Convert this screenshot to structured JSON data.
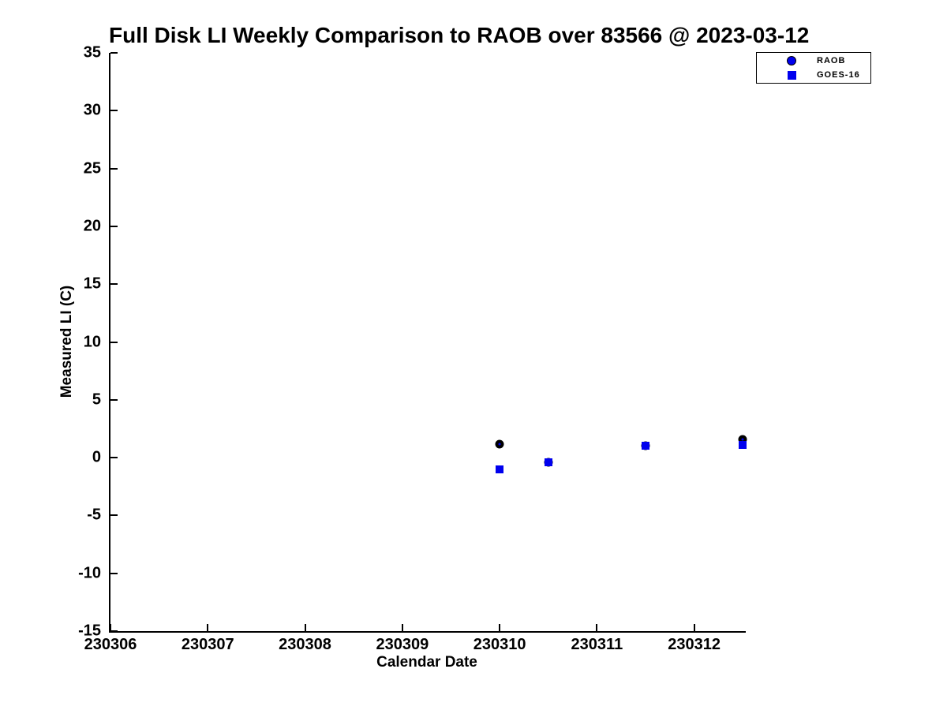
{
  "chart_data": {
    "type": "scatter",
    "title": "Full Disk LI Weekly Comparison to RAOB over 83566 @ 2023-03-12",
    "xlabel": "Calendar Date",
    "ylabel": "Measured LI (C)",
    "xlim": [
      230306,
      230312.53
    ],
    "ylim": [
      -15,
      35
    ],
    "xticks": [
      "230306",
      "230307",
      "230308",
      "230309",
      "230310",
      "230311",
      "230312"
    ],
    "yticks": [
      35,
      30,
      25,
      20,
      15,
      10,
      5,
      0,
      -5,
      -10,
      -15
    ],
    "grid": false,
    "legend_position": "top-right",
    "series": [
      {
        "name": "RAOB",
        "marker": "circle",
        "marker_color": "#0000ee",
        "marker_edge_color": "#000000",
        "points": [
          {
            "x": 230310.0,
            "y": 1.2
          },
          {
            "x": 230310.5,
            "y": -0.4
          },
          {
            "x": 230311.5,
            "y": 1.0
          },
          {
            "x": 230312.5,
            "y": 1.6
          }
        ]
      },
      {
        "name": "GOES-16",
        "marker": "square",
        "marker_color": "#0000ee",
        "points": [
          {
            "x": 230310.0,
            "y": -1.0
          },
          {
            "x": 230310.5,
            "y": -0.4
          },
          {
            "x": 230311.5,
            "y": 1.0
          },
          {
            "x": 230312.5,
            "y": 1.1
          }
        ]
      }
    ]
  },
  "colors": {
    "accent_blue": "#0000ee",
    "axis": "#000000",
    "background": "#ffffff"
  }
}
